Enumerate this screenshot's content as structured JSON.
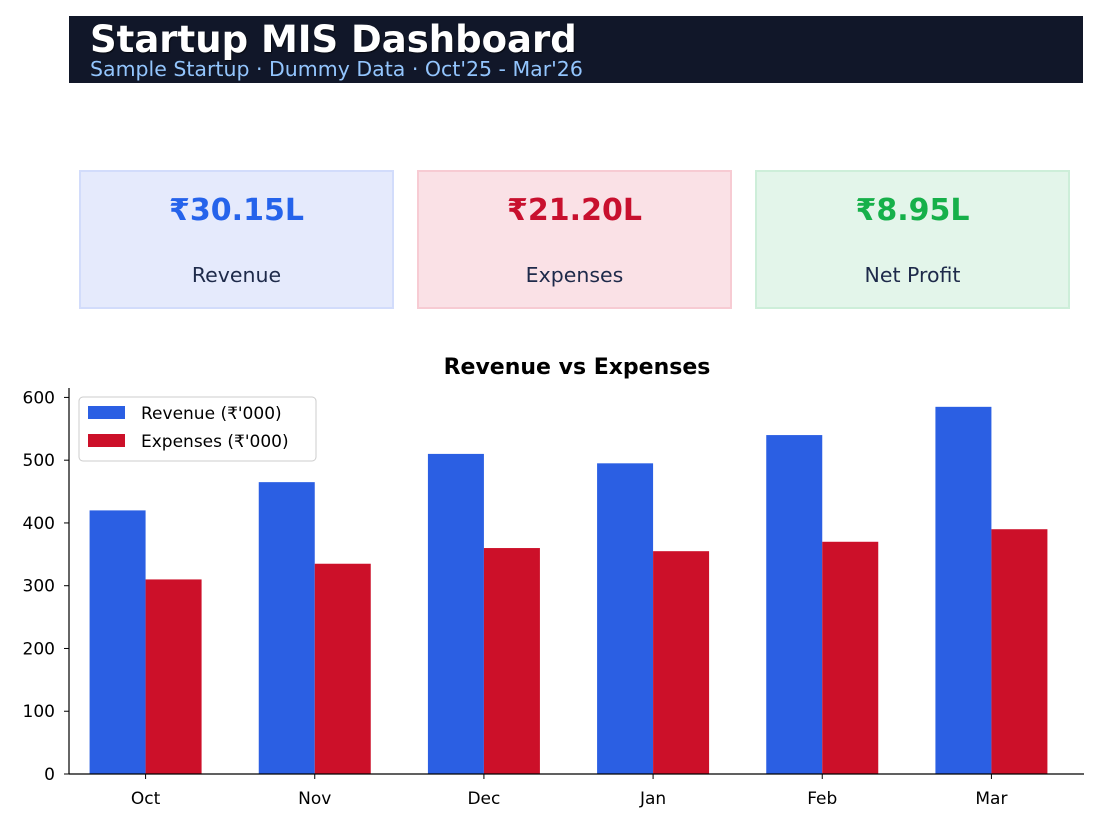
{
  "header": {
    "title": "Startup MIS Dashboard",
    "subtitle": "Sample Startup · Dummy Data · Oct'25 - Mar'26",
    "background": "#111729",
    "subtitle_color": "#93c5fd"
  },
  "kpis": [
    {
      "value": "₹30.15L",
      "label": "Revenue",
      "value_color": "#2563eb",
      "bg": "#e5eafc",
      "border": "#d2dcfb"
    },
    {
      "value": "₹21.20L",
      "label": "Expenses",
      "value_color": "#c8102e",
      "bg": "#fae1e6",
      "border": "#f7cbd3"
    },
    {
      "value": "₹8.95L",
      "label": "Net Profit",
      "value_color": "#16b04a",
      "bg": "#e3f5ea",
      "border": "#cdeed9"
    }
  ],
  "kpi_label_color": "#1e2a4a",
  "chart_data": {
    "type": "bar",
    "title": "Revenue vs Expenses",
    "xlabel": "",
    "ylabel": "",
    "categories": [
      "Oct",
      "Nov",
      "Dec",
      "Jan",
      "Feb",
      "Mar"
    ],
    "series": [
      {
        "name": "Revenue (₹'000)",
        "values": [
          420,
          465,
          510,
          495,
          540,
          585
        ],
        "color": "#2b5fe3"
      },
      {
        "name": "Expenses (₹'000)",
        "values": [
          310,
          335,
          360,
          355,
          370,
          390
        ],
        "color": "#cc1029"
      }
    ],
    "ylim": [
      0,
      615
    ],
    "yticks": [
      0,
      100,
      200,
      300,
      400,
      500,
      600
    ],
    "grid": false,
    "legend_position": "top-left"
  }
}
